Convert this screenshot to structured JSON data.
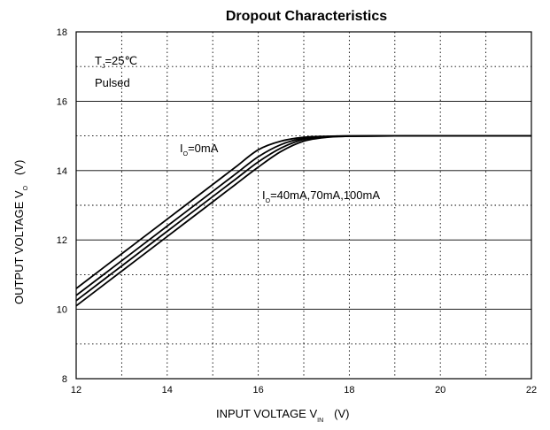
{
  "chart_data": {
    "type": "line",
    "title": "Dropout Characteristics",
    "xlabel": {
      "main": "INPUT VOLTAGE   V",
      "sub": "IN",
      "unit": "(V)"
    },
    "ylabel": {
      "main": "OUTPUT VOLTAGE   V",
      "sub": "O",
      "unit": "(V)"
    },
    "xlim": [
      12,
      22
    ],
    "ylim": [
      8,
      18
    ],
    "x_ticks": [
      12,
      14,
      16,
      18,
      20,
      22
    ],
    "y_ticks": [
      8,
      10,
      12,
      14,
      16,
      18
    ],
    "grid": {
      "solid_y": [
        10,
        12,
        14,
        16
      ],
      "dotted_y": [
        9,
        11,
        13,
        15,
        17
      ],
      "dotted_x": [
        13,
        14,
        15,
        16,
        17,
        18,
        19,
        20,
        21
      ]
    },
    "annotations": {
      "conditions_line1": {
        "main": "T",
        "sub": "J",
        "rest": "=25℃"
      },
      "conditions_line2": "Pulsed",
      "label_0mA": {
        "main": "I",
        "sub": "O",
        "rest": "=0mA"
      },
      "label_load": {
        "main": "I",
        "sub": "O",
        "rest": "=40mA,70mA,100mA"
      }
    },
    "series": [
      {
        "name": "0mA",
        "x": [
          12,
          13,
          14,
          15,
          15.5,
          16,
          16.5,
          17,
          17.5,
          18,
          19,
          20,
          22
        ],
        "y": [
          10.6,
          11.6,
          12.6,
          13.6,
          14.1,
          14.6,
          14.85,
          14.96,
          14.99,
          15.0,
          15.0,
          15.0,
          15.0
        ]
      },
      {
        "name": "40mA",
        "x": [
          12,
          13,
          14,
          15,
          15.5,
          16,
          16.5,
          17,
          17.5,
          18,
          19,
          20,
          22
        ],
        "y": [
          10.4,
          11.4,
          12.4,
          13.4,
          13.9,
          14.4,
          14.75,
          14.93,
          14.98,
          15.0,
          15.0,
          15.0,
          15.0
        ]
      },
      {
        "name": "70mA",
        "x": [
          12,
          13,
          14,
          15,
          15.5,
          16,
          16.5,
          17,
          17.5,
          18,
          19,
          20,
          22
        ],
        "y": [
          10.25,
          11.25,
          12.25,
          13.25,
          13.75,
          14.25,
          14.65,
          14.9,
          14.97,
          14.99,
          15.0,
          15.0,
          15.0
        ]
      },
      {
        "name": "100mA",
        "x": [
          12,
          13,
          14,
          15,
          15.5,
          16,
          16.5,
          17,
          17.5,
          18,
          19,
          20,
          22
        ],
        "y": [
          10.1,
          11.1,
          12.1,
          13.1,
          13.6,
          14.1,
          14.55,
          14.85,
          14.96,
          14.99,
          15.0,
          15.0,
          15.0
        ]
      }
    ]
  }
}
